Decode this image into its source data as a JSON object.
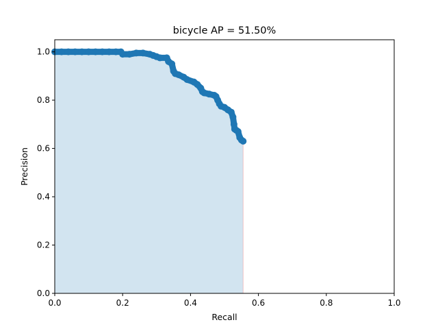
{
  "chart_data": {
    "type": "area",
    "title": "bicycle AP = 51.50%",
    "xlabel": "Recall",
    "ylabel": "Precision",
    "xlim": [
      0,
      1
    ],
    "ylim": [
      0,
      1.05
    ],
    "xticks": [
      0,
      0.2,
      0.4,
      0.6,
      0.8,
      1
    ],
    "xtick_labels": [
      "0.0",
      "0.2",
      "0.4",
      "0.6",
      "0.8",
      "1.0"
    ],
    "yticks": [
      0,
      0.2,
      0.4,
      0.6,
      0.8,
      1
    ],
    "ytick_labels": [
      "0.0",
      "0.2",
      "0.4",
      "0.6",
      "0.8",
      "1.0"
    ],
    "grid": false,
    "legend": "none",
    "colors": {
      "points": "#1f77b4",
      "fill": "#1f77b4",
      "edge": "#ff0000"
    },
    "series": [
      {
        "x": [
          0.0,
          0.02,
          0.04,
          0.06,
          0.08,
          0.1,
          0.12,
          0.14,
          0.16,
          0.18,
          0.195,
          0.2,
          0.22,
          0.24,
          0.26,
          0.28,
          0.29,
          0.3,
          0.31,
          0.33,
          0.335,
          0.345,
          0.35,
          0.355,
          0.365,
          0.38,
          0.39,
          0.41,
          0.42,
          0.43,
          0.435,
          0.44,
          0.455,
          0.47,
          0.475,
          0.48,
          0.485,
          0.49,
          0.5,
          0.51,
          0.52,
          0.525,
          0.528,
          0.53,
          0.535,
          0.54,
          0.545,
          0.55,
          0.555
        ],
        "y": [
          1.0,
          1.0,
          1.0,
          1.0,
          1.0,
          1.0,
          1.0,
          1.0,
          1.0,
          1.0,
          1.0,
          0.99,
          0.99,
          0.995,
          0.995,
          0.99,
          0.985,
          0.98,
          0.975,
          0.975,
          0.96,
          0.95,
          0.92,
          0.91,
          0.905,
          0.895,
          0.885,
          0.875,
          0.865,
          0.85,
          0.835,
          0.83,
          0.825,
          0.82,
          0.815,
          0.8,
          0.785,
          0.775,
          0.77,
          0.76,
          0.75,
          0.73,
          0.7,
          0.68,
          0.675,
          0.67,
          0.645,
          0.635,
          0.63
        ]
      }
    ]
  }
}
